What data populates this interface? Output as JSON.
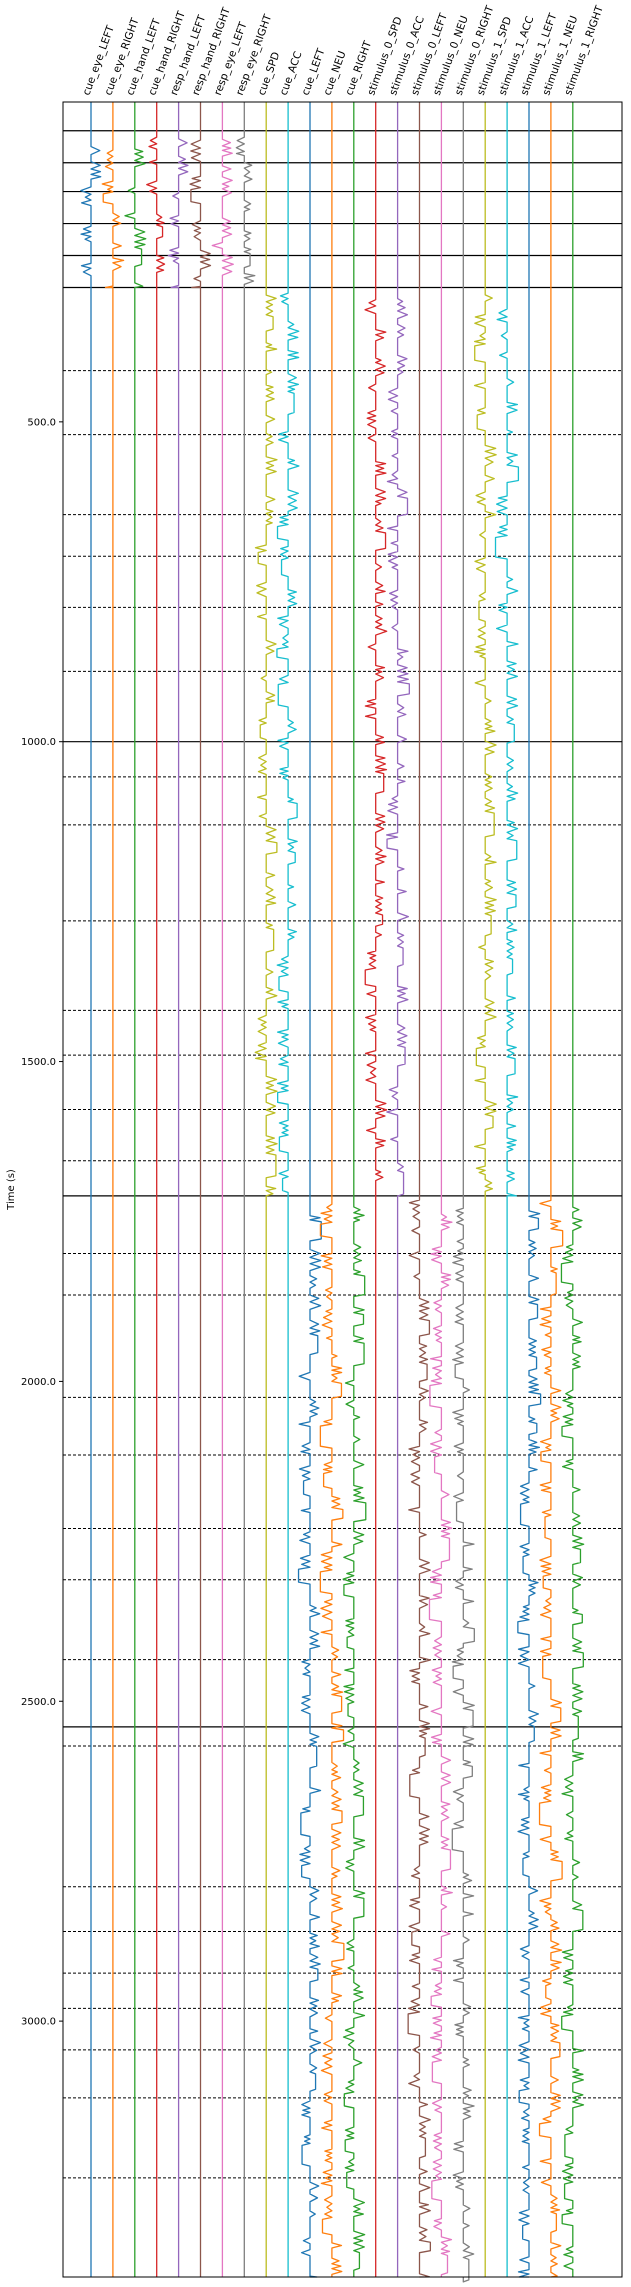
{
  "chart_data": {
    "type": "line",
    "title": "",
    "xlabel": "",
    "ylabel": "Time (s)",
    "ylim": [
      0,
      3400
    ],
    "yticks": [
      500,
      1000,
      1500,
      2000,
      2500,
      3000
    ],
    "ytick_labels": [
      "500.0",
      "1000.0",
      "1500.0",
      "2000.0",
      "2500.0",
      "3000.0"
    ],
    "grid": false,
    "channels": [
      {
        "name": "cue_eye_LEFT",
        "color": "#1f77b4"
      },
      {
        "name": "cue_eye_RIGHT",
        "color": "#ff7f0e"
      },
      {
        "name": "cue_hand_LEFT",
        "color": "#2ca02c"
      },
      {
        "name": "cue_hand_RIGHT",
        "color": "#d62728"
      },
      {
        "name": "resp_hand_LEFT",
        "color": "#9467bd"
      },
      {
        "name": "resp_hand_RIGHT",
        "color": "#8c564b"
      },
      {
        "name": "resp_eye_LEFT",
        "color": "#e377c2"
      },
      {
        "name": "resp_eye_RIGHT",
        "color": "#7f7f7f"
      },
      {
        "name": "cue_SPD",
        "color": "#bcbd22"
      },
      {
        "name": "cue_ACC",
        "color": "#17becf"
      },
      {
        "name": "cue_LEFT",
        "color": "#1f77b4"
      },
      {
        "name": "cue_NEU",
        "color": "#ff7f0e"
      },
      {
        "name": "cue_RIGHT",
        "color": "#2ca02c"
      },
      {
        "name": "stimulus_0_SPD",
        "color": "#d62728"
      },
      {
        "name": "stimulus_0_ACC",
        "color": "#9467bd"
      },
      {
        "name": "stimulus_0_LEFT",
        "color": "#8c564b"
      },
      {
        "name": "stimulus_0_NEU",
        "color": "#e377c2"
      },
      {
        "name": "stimulus_0_RIGHT",
        "color": "#7f7f7f"
      },
      {
        "name": "stimulus_1_SPD",
        "color": "#bcbd22"
      },
      {
        "name": "stimulus_1_ACC",
        "color": "#17becf"
      },
      {
        "name": "stimulus_1_LEFT",
        "color": "#1f77b4"
      },
      {
        "name": "stimulus_1_NEU",
        "color": "#ff7f0e"
      },
      {
        "name": "stimulus_1_RIGHT",
        "color": "#2ca02c"
      }
    ],
    "block_boundaries_solid": [
      45,
      95,
      140,
      190,
      240,
      290,
      1000,
      1710,
      2540
    ],
    "block_boundaries_dashed": [
      420,
      520,
      645,
      710,
      790,
      890,
      1055,
      1130,
      1280,
      1420,
      1490,
      1575,
      1655,
      1800,
      1865,
      2025,
      2115,
      2230,
      2310,
      2435,
      2570,
      2790,
      2860,
      2925,
      2980,
      3045,
      3120,
      3245
    ],
    "event_segments": [
      {
        "channels": [
          0,
          1,
          2,
          3,
          4,
          5,
          6,
          7
        ],
        "start": 45,
        "end": 290
      },
      {
        "channels": [
          8,
          9,
          13,
          14,
          18,
          19
        ],
        "start": 290,
        "end": 1710
      },
      {
        "channels": [
          10,
          11,
          12,
          15,
          16,
          17,
          20,
          21,
          22
        ],
        "start": 1710,
        "end": 3400
      }
    ]
  }
}
